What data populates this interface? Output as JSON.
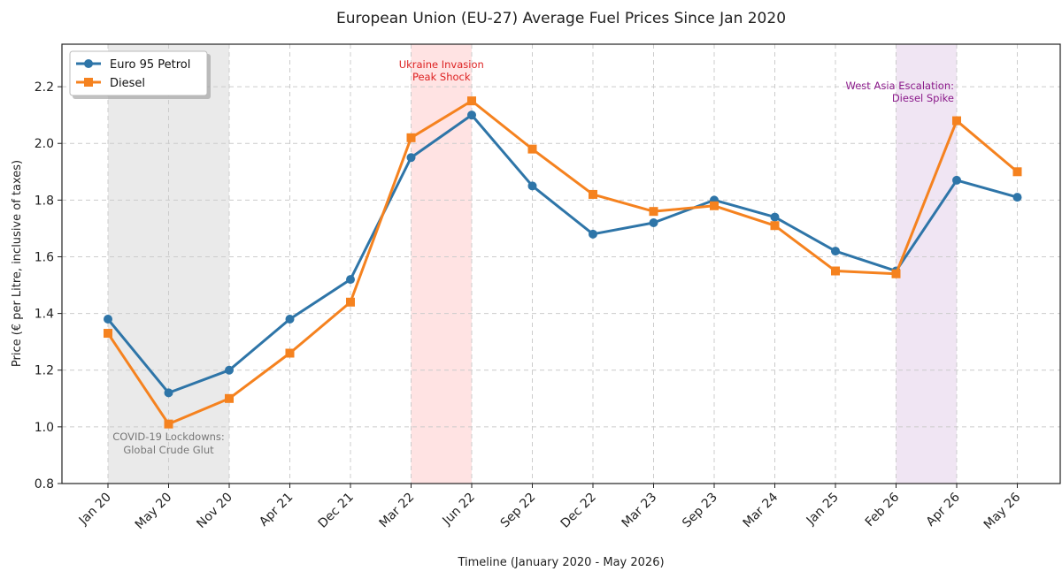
{
  "chart_data": {
    "type": "line",
    "title": "European Union (EU-27) Average Fuel Prices Since Jan 2020",
    "xlabel": "Timeline (January 2020 - May 2026)",
    "ylabel": "Price (€ per Litre, inclusive of taxes)",
    "categories": [
      "Jan 20",
      "May 20",
      "Nov 20",
      "Apr 21",
      "Dec 21",
      "Mar 22",
      "Jun 22",
      "Sep 22",
      "Dec 22",
      "Mar 23",
      "Sep 23",
      "Mar 24",
      "Jan 25",
      "Feb 26",
      "Apr 26",
      "May 26"
    ],
    "ylim": [
      0.8,
      2.35
    ],
    "yticks": [
      0.8,
      1.0,
      1.2,
      1.4,
      1.6,
      1.8,
      2.0,
      2.2
    ],
    "grid": true,
    "legend_position": "top-left",
    "series": [
      {
        "name": "Euro 95 Petrol",
        "color": "#2e75a8",
        "marker": "circle",
        "values": [
          1.38,
          1.12,
          1.2,
          1.38,
          1.52,
          1.95,
          2.1,
          1.85,
          1.68,
          1.72,
          1.8,
          1.74,
          1.62,
          1.55,
          1.87,
          1.81
        ]
      },
      {
        "name": "Diesel",
        "color": "#f5821f",
        "marker": "square",
        "values": [
          1.33,
          1.01,
          1.1,
          1.26,
          1.44,
          2.02,
          2.15,
          1.98,
          1.82,
          1.76,
          1.78,
          1.71,
          1.55,
          1.54,
          2.08,
          1.9
        ]
      }
    ],
    "shaded_regions": [
      {
        "start": "Jan 20",
        "end": "Nov 20",
        "color": "#d9d9d9",
        "text_color": "#777777",
        "label_position": "bottom",
        "label_lines": [
          "COVID-19 Lockdowns:",
          "Global Crude Glut"
        ]
      },
      {
        "start": "Mar 22",
        "end": "Jun 22",
        "color": "#ffcccc",
        "text_color": "#dd2222",
        "label_position": "top",
        "label_lines": [
          "Ukraine Invasion",
          "Peak Shock"
        ]
      },
      {
        "start": "Feb 26",
        "end": "Apr 26",
        "color": "#e3cfe9",
        "text_color": "#8b1a8b",
        "label_position": "top-left",
        "label_lines": [
          "West Asia Escalation:",
          "Diesel Spike"
        ]
      }
    ]
  }
}
